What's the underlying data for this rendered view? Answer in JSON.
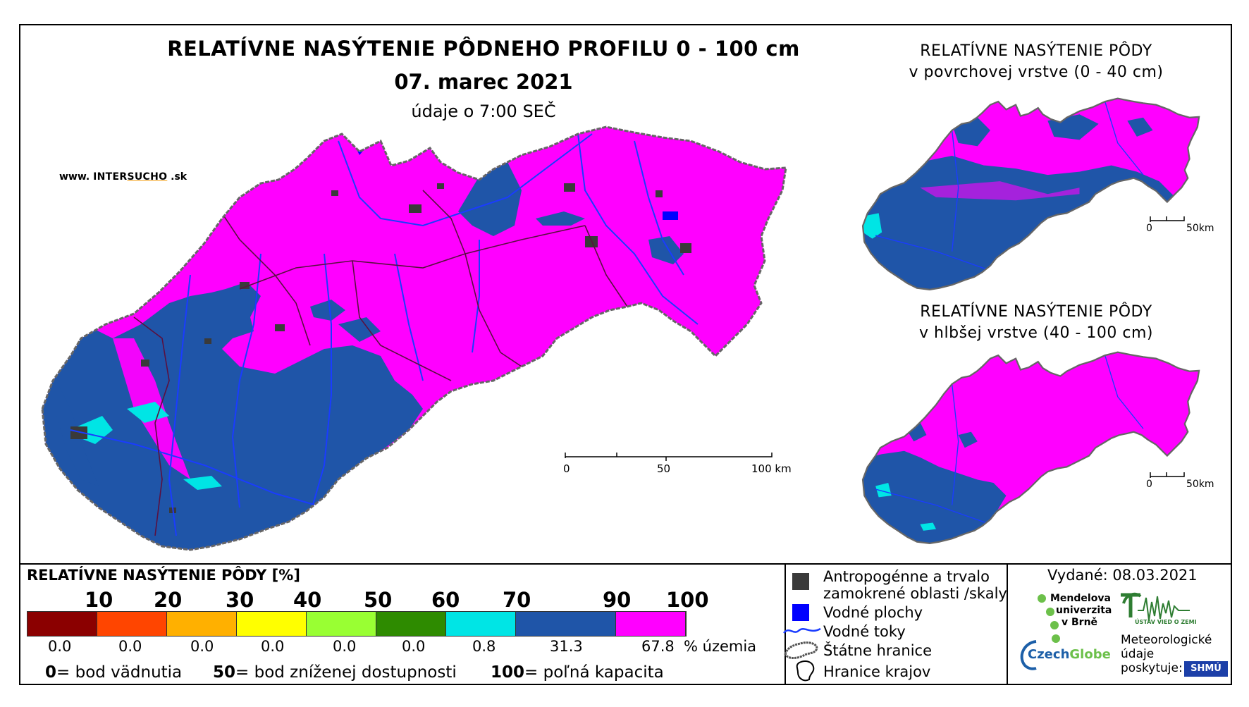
{
  "header": {
    "title": "RELATÍVNE NASÝTENIE PÔDNEHO PROFILU 0 - 100 cm",
    "date": "07. marec 2021",
    "subtitle": "údaje o 7:00 SEČ",
    "website_prefix": "www.",
    "website_brand_a": "INTER",
    "website_brand_b": "SUCHO",
    "website_suffix": ".sk"
  },
  "main_map": {
    "scale_labels": [
      "0",
      "50",
      "100 km"
    ]
  },
  "inset_top": {
    "title_line1": "RELATÍVNE NASÝTENIE PÔDY",
    "title_line2": "v povrchovej vrstve (0 - 40 cm)",
    "scale_labels": [
      "0",
      "50km"
    ]
  },
  "inset_bottom": {
    "title_line1": "RELATÍVNE NASÝTENIE PÔDY",
    "title_line2": "v hlbšej vrstve (40 - 100 cm)",
    "scale_labels": [
      "0",
      "50km"
    ]
  },
  "legend": {
    "title": "RELATÍVNE NASÝTENIE PÔDY [%]",
    "ticks": [
      "10",
      "20",
      "30",
      "40",
      "50",
      "60",
      "70",
      "90",
      "100"
    ],
    "classes": [
      {
        "color": "#8b0000",
        "percent": "0.0"
      },
      {
        "color": "#ff4500",
        "percent": "0.0"
      },
      {
        "color": "#ffb000",
        "percent": "0.0"
      },
      {
        "color": "#ffff00",
        "percent": "0.0"
      },
      {
        "color": "#99ff33",
        "percent": "0.0"
      },
      {
        "color": "#2e8b00",
        "percent": "0.0"
      },
      {
        "color": "#00e5e5",
        "percent": "0.8"
      },
      {
        "color": "#1f55a8",
        "percent": "31.3"
      },
      {
        "color": "#ff00ff",
        "percent": "67.8"
      }
    ],
    "percent_unit": "% územia",
    "explain": [
      {
        "value": "0",
        "text": "= bod vädnutia"
      },
      {
        "value": "50",
        "text": "= bod zníženej dostupnosti"
      },
      {
        "value": "100",
        "text": "= poľná kapacita"
      }
    ]
  },
  "symbols": {
    "anthropogenic_line1": "Antropogénne a trvalo",
    "anthropogenic_line2": "zamokrené oblasti /skaly",
    "water_areas": "Vodné plochy",
    "rivers": "Vodné toky",
    "state_border": "Štátne hranice",
    "region_border": "Hranice krajov"
  },
  "credits": {
    "issued": "Vydané: 08.03.2021",
    "mendel": [
      "Mendelova",
      "univerzita",
      "v Brně"
    ],
    "czechglobe_a": "Czech",
    "czechglobe_b": "Globe",
    "uvz": "ÚSTAV VIED O ZEMI",
    "meteo": [
      "Meteorologické",
      "údaje",
      "poskytuje:"
    ],
    "shmu": "SHMÚ"
  },
  "colors": {
    "magenta": "#ff00ff",
    "blue": "#1f55a8",
    "cyan": "#00e5e5",
    "anthropogenic": "#3a3a3a",
    "water": "#0000ff"
  }
}
